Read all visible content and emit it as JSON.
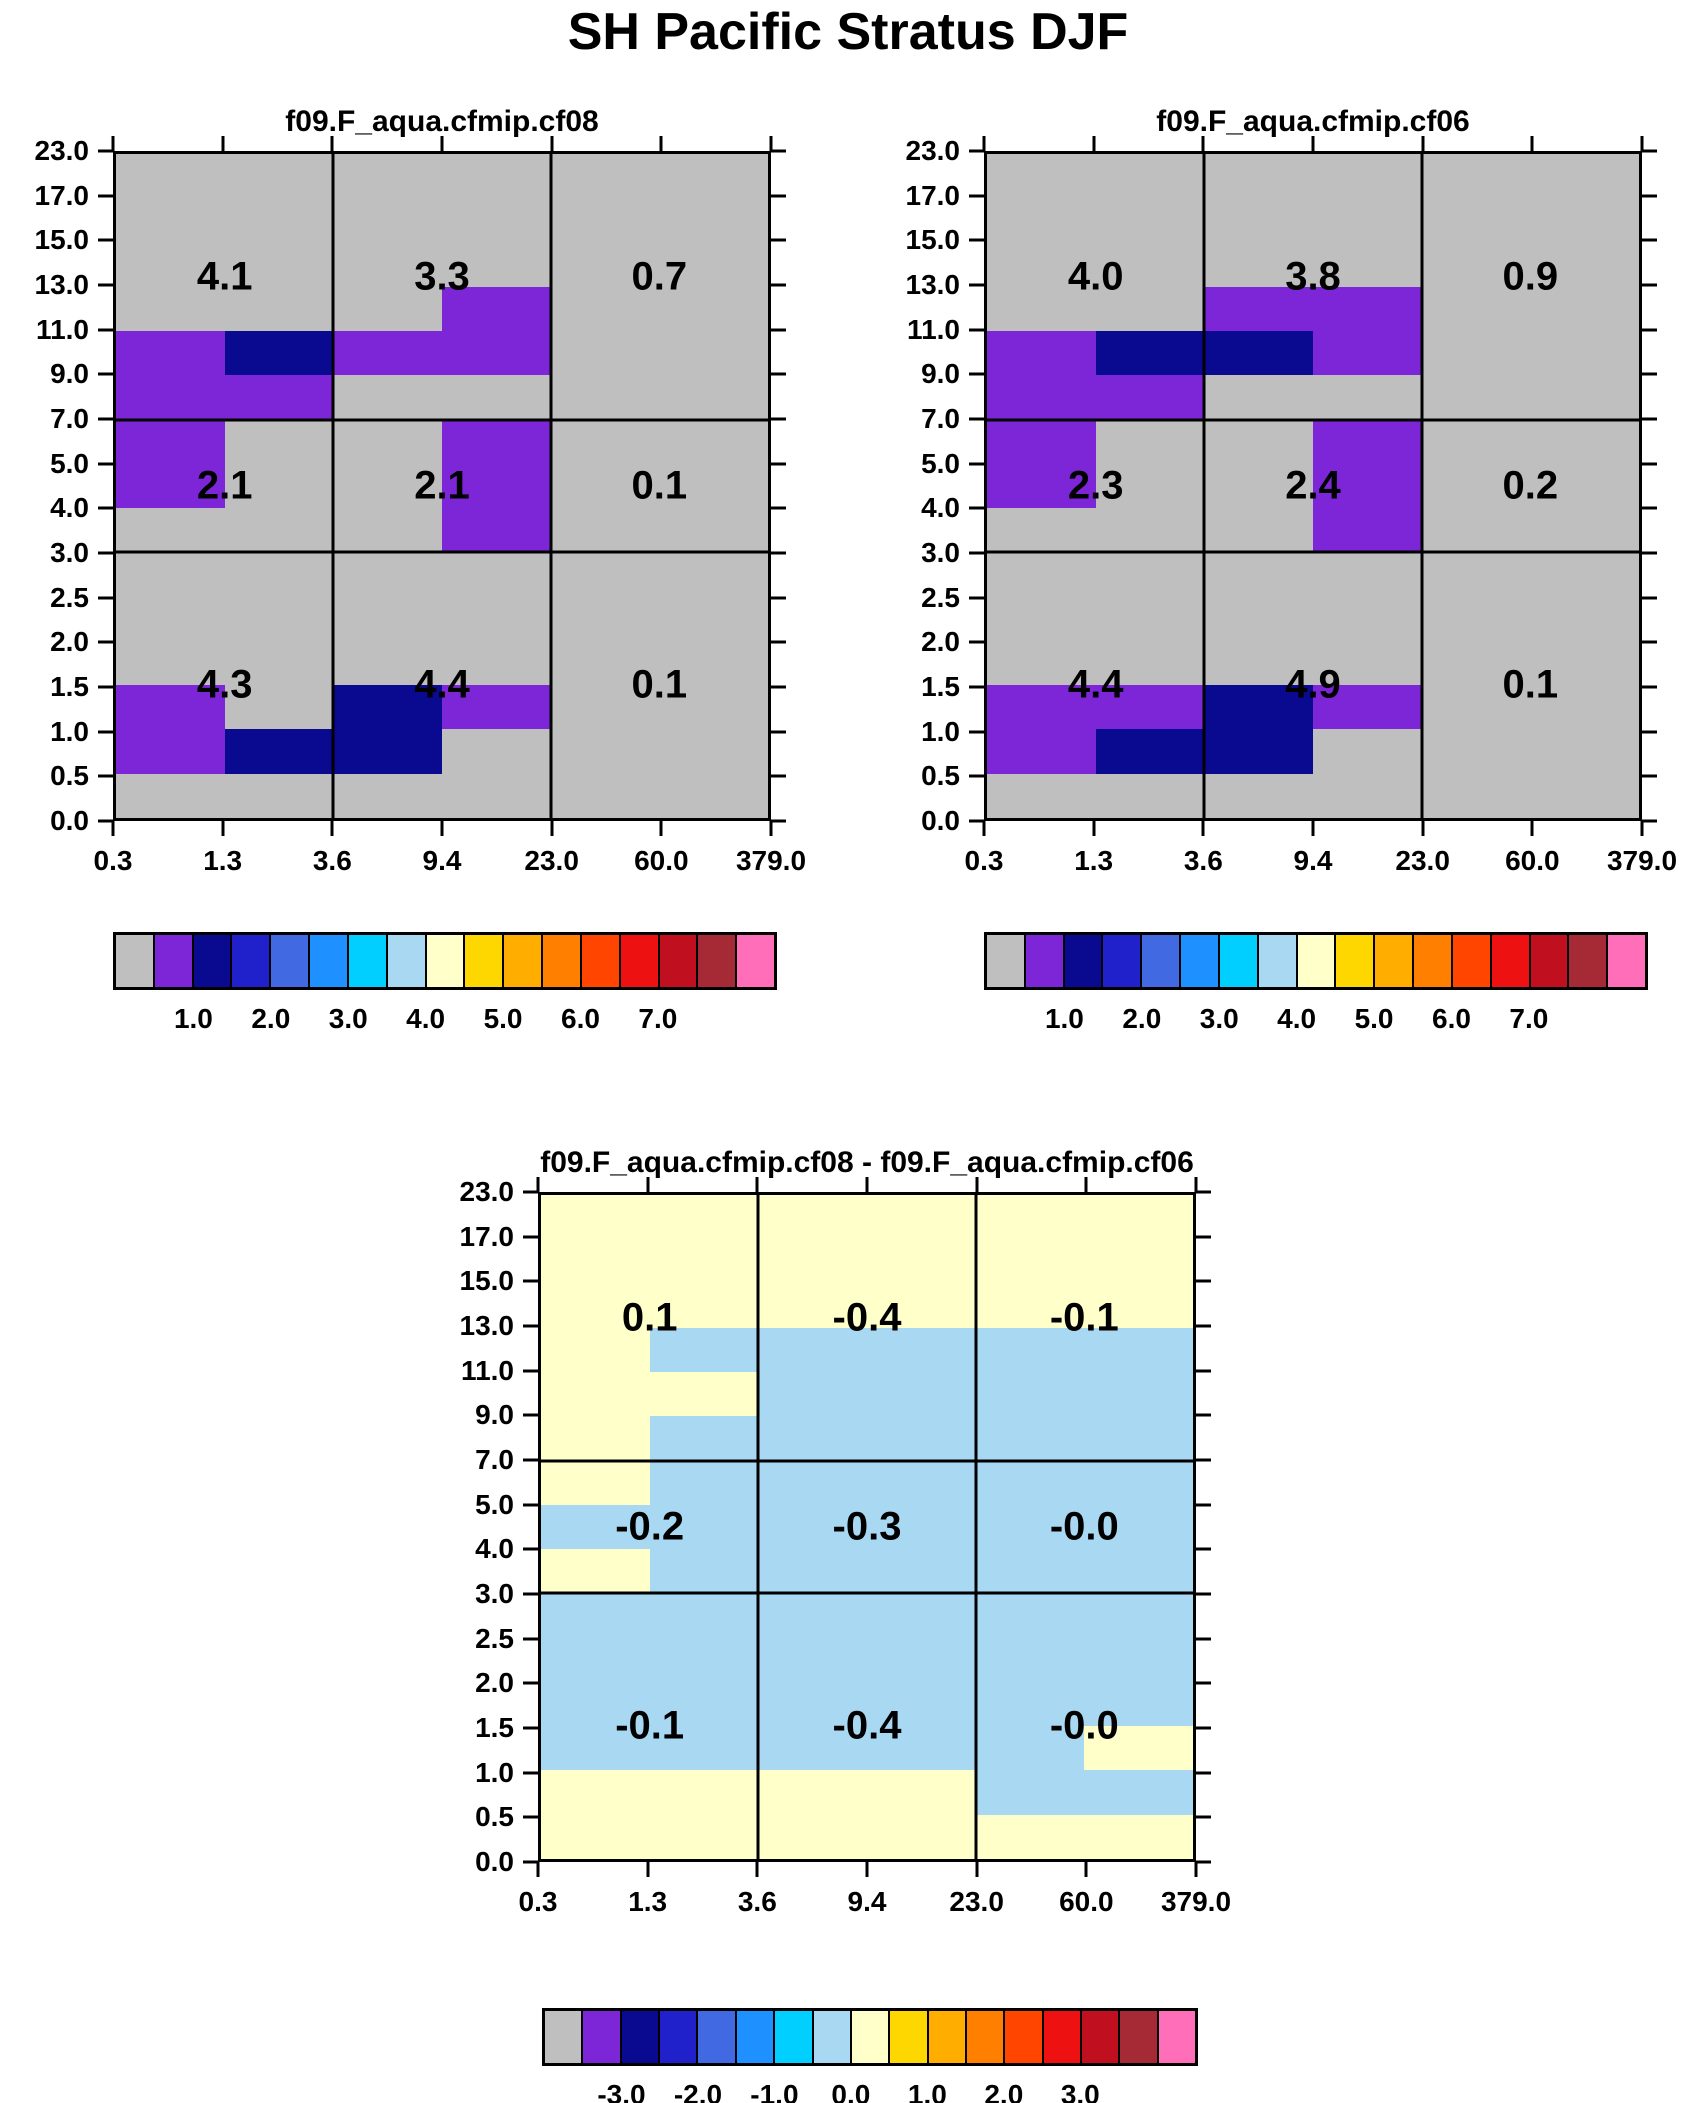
{
  "chart_data": {
    "type": "heatmap",
    "suptitle": "SH Pacific Stratus DJF",
    "x_axis": {
      "bin_edges": [
        0.3,
        1.3,
        3.6,
        9.4,
        23.0,
        60.0,
        379.0
      ],
      "tick_labels": [
        "0.3",
        "1.3",
        "3.6",
        "9.4",
        "23.0",
        "60.0",
        "379.0"
      ]
    },
    "y_axis": {
      "bin_edges": [
        0.0,
        0.5,
        1.0,
        1.5,
        2.0,
        2.5,
        3.0,
        4.0,
        5.0,
        7.0,
        9.0,
        11.0,
        13.0,
        15.0,
        17.0,
        23.0
      ],
      "tick_labels_top_to_bottom": [
        "23.0",
        "17.0",
        "15.0",
        "13.0",
        "11.0",
        "9.0",
        "7.0",
        "5.0",
        "4.0",
        "3.0",
        "2.5",
        "2.0",
        "1.5",
        "1.0",
        "0.5",
        "0.0"
      ]
    },
    "region_row_ranges": [
      "7.0-23.0",
      "3.0-7.0",
      "0.0-3.0"
    ],
    "region_col_ranges": [
      "0.3-3.6",
      "3.6-23.0",
      "23.0-379.0"
    ],
    "palette": {
      "G": "#BFBFBF",
      "P": "#7D26D8",
      "N": "#0A0A91",
      "Y": "#FFFFC9",
      "B": "#A9D8F3"
    },
    "palette_names": {
      "G": "gray",
      "P": "purple",
      "N": "dark-navy",
      "Y": "pale-yellow",
      "B": "pale-blue"
    },
    "colorbar_colors": [
      "#BFBFBF",
      "#7D26D8",
      "#0A0A91",
      "#2121CC",
      "#4169E1",
      "#1E90FF",
      "#00CFFF",
      "#A9D8F3",
      "#FFFFC9",
      "#FFD700",
      "#FFAE00",
      "#FF8000",
      "#FF4500",
      "#EE1111",
      "#C01020",
      "#A52A35",
      "#FF6EB8"
    ],
    "panels": [
      {
        "title": "f09.F_aqua.cfmip.cf08",
        "background": "G",
        "cell_grid_top_to_bottom": [
          "GGGGGG",
          "GGGGGG",
          "GGGGGG",
          "GGGPGG",
          "PNPPGG",
          "PPGGGG",
          "PGGPGG",
          "PGGPGG",
          "GGGPGG",
          "GGGGGG",
          "GGGGGG",
          "GGGGGG",
          "PGNPGG",
          "PNNGGG",
          "GGGGGG"
        ],
        "region_values": [
          [
            "4.1",
            "3.3",
            "0.7"
          ],
          [
            "2.1",
            "2.1",
            "0.1"
          ],
          [
            "4.3",
            "4.4",
            "0.1"
          ]
        ],
        "colorbar_labels": [
          "1.0",
          "2.0",
          "3.0",
          "4.0",
          "5.0",
          "6.0",
          "7.0"
        ]
      },
      {
        "title": "f09.F_aqua.cfmip.cf06",
        "background": "G",
        "cell_grid_top_to_bottom": [
          "GGGGGG",
          "GGGGGG",
          "GGGGGG",
          "GGPPGG",
          "PNNPGG",
          "PPGGGG",
          "PGGPGG",
          "PGGPGG",
          "GGGPGG",
          "GGGGGG",
          "GGGGGG",
          "GGGGGG",
          "PPNPGG",
          "PNNGGG",
          "GGGGGG"
        ],
        "region_values": [
          [
            "4.0",
            "3.8",
            "0.9"
          ],
          [
            "2.3",
            "2.4",
            "0.2"
          ],
          [
            "4.4",
            "4.9",
            "0.1"
          ]
        ],
        "colorbar_labels": [
          "1.0",
          "2.0",
          "3.0",
          "4.0",
          "5.0",
          "6.0",
          "7.0"
        ]
      },
      {
        "title": "f09.F_aqua.cfmip.cf08 - f09.F_aqua.cfmip.cf06",
        "background": "Y",
        "cell_grid_top_to_bottom": [
          "YYYYYY",
          "YYYYYY",
          "YYYYYY",
          "YBBBBB",
          "YYBBBB",
          "YBBBBB",
          "YBBBBB",
          "BBBBBB",
          "YBBBBB",
          "BBBBBB",
          "BBBBBB",
          "BBBBBB",
          "BBBBBY",
          "YYYYBB",
          "YYYYYY"
        ],
        "region_values": [
          [
            "0.1",
            "-0.4",
            "-0.1"
          ],
          [
            "-0.2",
            "-0.3",
            "-0.0"
          ],
          [
            "-0.1",
            "-0.4",
            "-0.0"
          ]
        ],
        "colorbar_labels": [
          "-3.0",
          "-2.0",
          "-1.0",
          "0.0",
          "1.0",
          "2.0",
          "3.0"
        ]
      }
    ]
  }
}
